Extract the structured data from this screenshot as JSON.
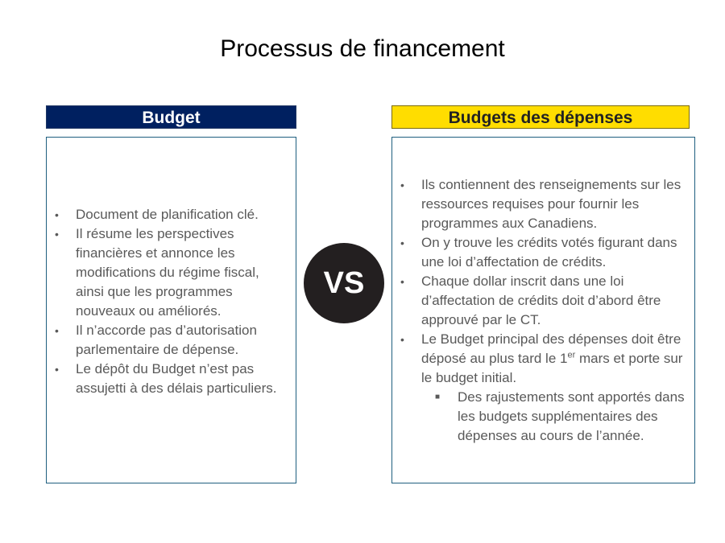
{
  "title": "Processus de financement",
  "vs_label": "VS",
  "left": {
    "header": "Budget",
    "header_color": "#002060",
    "bullets": [
      "Document de planification clé.",
      "Il résume les perspectives financières et annonce les modifications du régime fiscal, ainsi que les programmes nouveaux ou améliorés.",
      "Il n’accorde pas d’autorisation parlementaire de dépense.",
      "Le dépôt du Budget n’est pas assujetti à des délais particuliers."
    ]
  },
  "right": {
    "header": "Budgets des dépenses",
    "header_color": "#ffdd00",
    "bullets": [
      "Ils contiennent des renseignements sur les ressources requises pour fournir les programmes aux Canadiens.",
      "On y trouve les crédits votés figurant dans une loi d’affectation de crédits.",
      "Chaque dollar inscrit dans une loi d’affectation de crédits doit d’abord être approuvé par le CT."
    ],
    "bullet4": {
      "before": "Le Budget principal des dépenses doit être déposé au plus tard le 1",
      "sup": "er",
      "after": " mars et porte sur le budget initial."
    },
    "sub_bullet": "Des rajustements sont apportés dans les budgets supplémentaires des dépenses au cours de l’année."
  }
}
